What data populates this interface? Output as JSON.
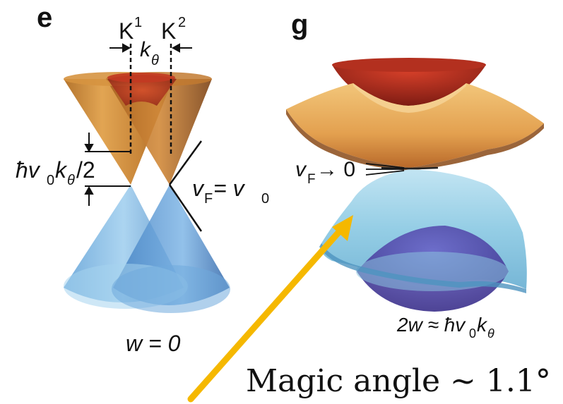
{
  "panel_e": {
    "letter": "e",
    "k1_label": "K",
    "k1_sup": "1",
    "k2_label": "K",
    "k2_sup": "2",
    "k_theta": "k",
    "k_theta_sub": "θ",
    "hbar_term": "ħv",
    "hbar_sub0": "0",
    "hbar_k": "k",
    "hbar_subtheta": "θ",
    "hbar_over2": "/2",
    "vf_v": "v",
    "vf_sub": "F",
    "vf_eq": " = v",
    "vf_eq_sub": "0",
    "w_label": "w = 0",
    "colors": {
      "k1": "#4a55a2",
      "k2": "#c9462a"
    }
  },
  "panel_g": {
    "letter": "g",
    "vf_v": "v",
    "vf_sub": "F",
    "vf_arrow": " → 0",
    "bottom_w": "2w ≈ ħv",
    "bottom_sub0": "0",
    "bottom_k": "k",
    "bottom_subtheta": "θ"
  },
  "annotation": {
    "caption": "Magic angle ∼ 1.1°",
    "arrow_color": "#f5b800"
  }
}
